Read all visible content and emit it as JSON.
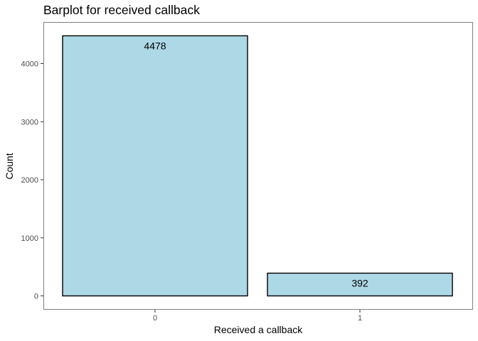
{
  "chart_data": {
    "type": "bar",
    "title": "Barplot for received callback",
    "xlabel": "Received a callback",
    "ylabel": "Count",
    "categories": [
      "0",
      "1"
    ],
    "values": [
      4478,
      392
    ],
    "data_labels": [
      "4478",
      "392"
    ],
    "y_ticks": [
      0,
      1000,
      2000,
      3000,
      4000
    ],
    "y_tick_labels": [
      "0",
      "1000",
      "2000",
      "3000",
      "4000"
    ],
    "ylim": [
      0,
      4700
    ],
    "grid": false,
    "legend": "none",
    "colors": {
      "bar_fill": "#add8e6",
      "bar_stroke": "#000000",
      "panel_border": "#7f7f7f",
      "tick_text": "#4d4d4d"
    }
  }
}
